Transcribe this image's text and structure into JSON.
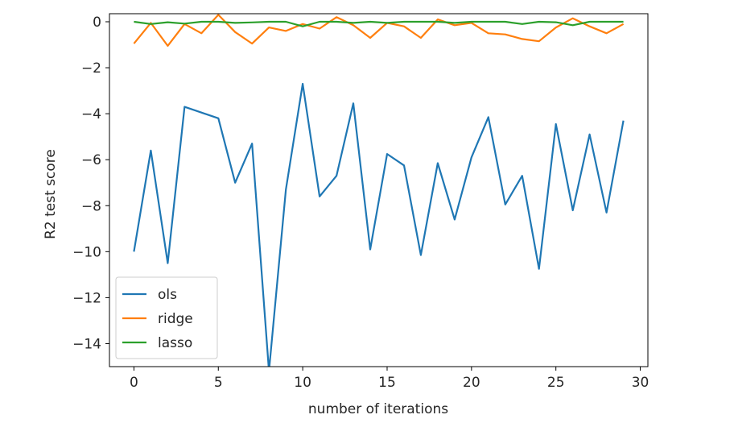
{
  "chart_data": {
    "type": "line",
    "xlabel": "number of iterations",
    "ylabel": "R2 test score",
    "xlim": [
      -1.45,
      30.45
    ],
    "ylim": [
      -15,
      0.35
    ],
    "xticks": [
      0,
      5,
      10,
      15,
      20,
      25,
      30
    ],
    "yticks": [
      0,
      -2,
      -4,
      -6,
      -8,
      -10,
      -12,
      -14
    ],
    "xtick_labels": [
      "0",
      "5",
      "10",
      "15",
      "20",
      "25",
      "30"
    ],
    "ytick_labels": [
      "0",
      "−2",
      "−4",
      "−6",
      "−8",
      "−10",
      "−12",
      "−14"
    ],
    "grid": false,
    "legend_position": "lower-left",
    "x": [
      0,
      1,
      2,
      3,
      4,
      5,
      6,
      7,
      8,
      9,
      10,
      11,
      12,
      13,
      14,
      15,
      16,
      17,
      18,
      19,
      20,
      21,
      22,
      23,
      24,
      25,
      26,
      27,
      28,
      29
    ],
    "series": [
      {
        "name": "ols",
        "color": "#1f77b4",
        "values": [
          -10.0,
          -5.6,
          -10.5,
          -3.7,
          -3.95,
          -4.2,
          -7.0,
          -5.3,
          -15.2,
          -7.3,
          -2.7,
          -7.6,
          -6.7,
          -3.55,
          -9.9,
          -5.75,
          -6.25,
          -10.15,
          -6.15,
          -8.6,
          -5.9,
          -4.15,
          -7.95,
          -6.7,
          -10.75,
          -4.45,
          -8.2,
          -4.9,
          -8.3,
          -4.3
        ]
      },
      {
        "name": "ridge",
        "color": "#ff7f0e",
        "values": [
          -0.95,
          -0.05,
          -1.05,
          -0.1,
          -0.5,
          0.3,
          -0.45,
          -0.95,
          -0.25,
          -0.4,
          -0.1,
          -0.3,
          0.2,
          -0.15,
          -0.7,
          -0.05,
          -0.2,
          -0.7,
          0.1,
          -0.15,
          -0.05,
          -0.5,
          -0.55,
          -0.75,
          -0.85,
          -0.25,
          0.15,
          -0.2,
          -0.5,
          -0.1
        ]
      },
      {
        "name": "lasso",
        "color": "#2ca02c",
        "values": [
          0.0,
          -0.1,
          -0.02,
          -0.08,
          0.0,
          0.0,
          -0.05,
          -0.03,
          0.0,
          0.0,
          -0.2,
          0.0,
          0.0,
          -0.05,
          0.0,
          -0.05,
          0.0,
          0.0,
          0.0,
          -0.05,
          0.0,
          0.0,
          0.0,
          -0.1,
          0.0,
          -0.02,
          -0.15,
          0.0,
          0.0,
          0.0
        ]
      }
    ]
  }
}
